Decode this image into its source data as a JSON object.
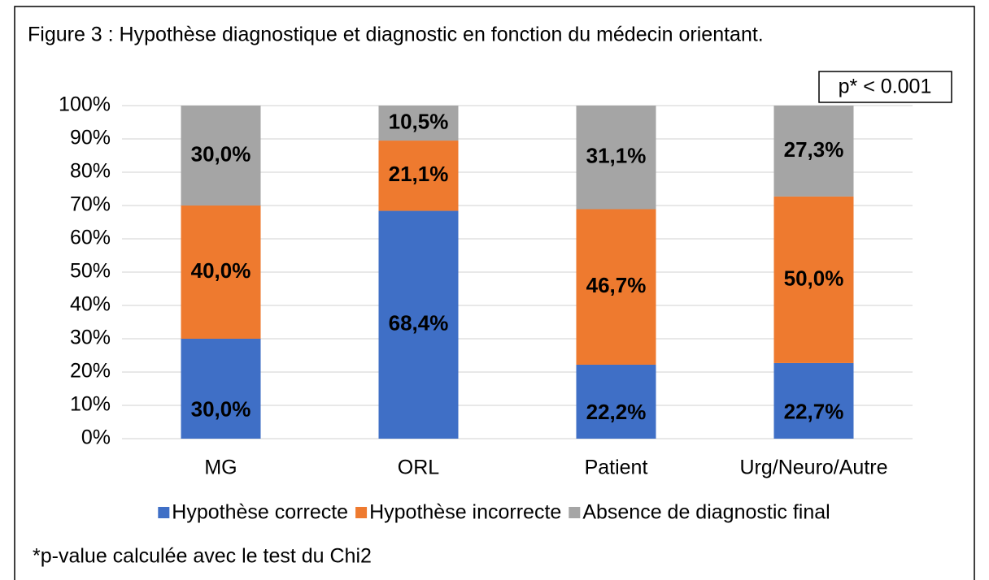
{
  "chart_data": {
    "type": "stacked_bar",
    "title": "Figure 3 : Hypothèse diagnostique et diagnostic en fonction du médecin orientant.",
    "annotation": "p* < 0.001",
    "footnote": "*p-value calculée avec le test du Chi2",
    "categories": [
      "MG",
      "ORL",
      "Patient",
      "Urg/Neuro/Autre"
    ],
    "series": [
      {
        "name": "Hypothèse correcte",
        "color": "#3f6fc6",
        "values": [
          30.0,
          68.4,
          22.2,
          22.7
        ],
        "value_labels": [
          "30,0%",
          "68,4%",
          "22,2%",
          "22,7%"
        ]
      },
      {
        "name": "Hypothèse incorrecte",
        "color": "#ee7a2f",
        "values": [
          40.0,
          21.1,
          46.7,
          50.0
        ],
        "value_labels": [
          "40,0%",
          "21,1%",
          "46,7%",
          "50,0%"
        ]
      },
      {
        "name": "Absence de diagnostic final",
        "color": "#a5a5a5",
        "values": [
          30.0,
          10.5,
          31.1,
          27.3
        ],
        "value_labels": [
          "30,0%",
          "10,5%",
          "31,1%",
          "27,3%"
        ]
      }
    ],
    "ylim": [
      0,
      100
    ],
    "yticks": [
      {
        "value": 0,
        "label": "0%"
      },
      {
        "value": 10,
        "label": "10%"
      },
      {
        "value": 20,
        "label": "20%"
      },
      {
        "value": 30,
        "label": "30%"
      },
      {
        "value": 40,
        "label": "40%"
      },
      {
        "value": 50,
        "label": "50%"
      },
      {
        "value": 60,
        "label": "60%"
      },
      {
        "value": 70,
        "label": "70%"
      },
      {
        "value": 80,
        "label": "80%"
      },
      {
        "value": 90,
        "label": "90%"
      },
      {
        "value": 100,
        "label": "100%"
      }
    ],
    "grid": true,
    "legend": "bottom"
  }
}
